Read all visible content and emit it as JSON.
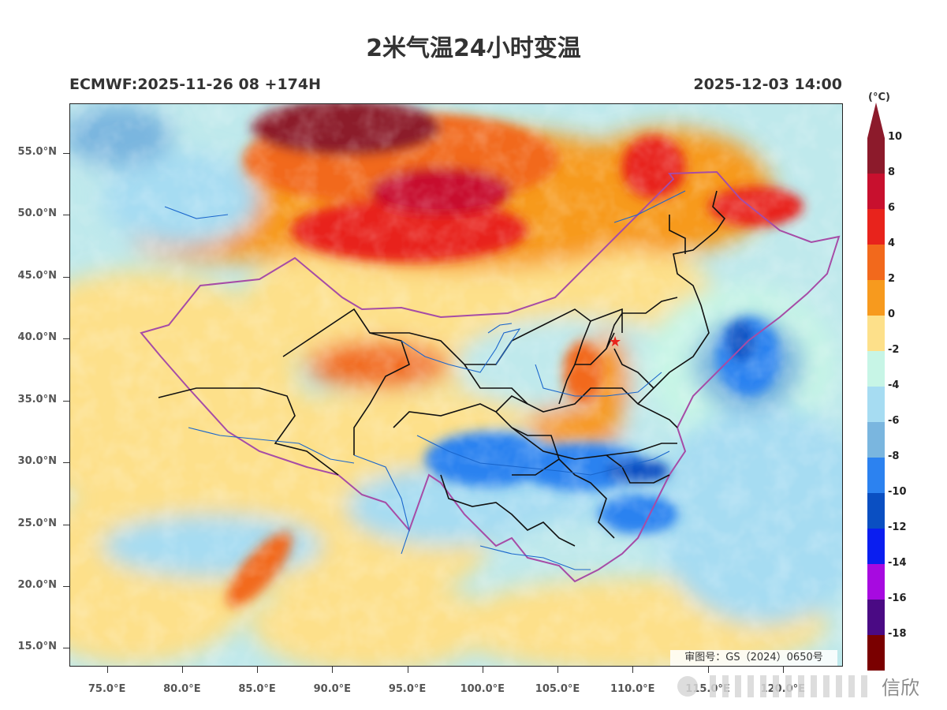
{
  "header": {
    "title": "2米气温24小时变温",
    "run_info": "ECMWF:2025-11-26 08 +174H",
    "valid_time": "2025-12-03 14:00"
  },
  "map": {
    "lat_range": [
      13.5,
      59
    ],
    "lon_range": [
      72.5,
      124
    ],
    "lat_ticks": [
      "55.0°N",
      "50.0°N",
      "45.0°N",
      "40.0°N",
      "35.0°N",
      "30.0°N",
      "25.0°N",
      "20.0°N",
      "15.0°N"
    ],
    "lon_ticks": [
      "75.0°E",
      "80.0°E",
      "85.0°E",
      "90.0°E",
      "95.0°E",
      "100.0°E",
      "105.0°E",
      "110.0°E",
      "115.0°E",
      "120.0°E"
    ],
    "review_number": "审图号：GS（2024）0650号"
  },
  "colorbar": {
    "unit": "(°C)",
    "labels": [
      "10",
      "8",
      "6",
      "4",
      "2",
      "0",
      "-2",
      "-4",
      "-6",
      "-8",
      "-10",
      "-12",
      "-14",
      "-16",
      "-18"
    ],
    "colors": [
      "#8c1a2b",
      "#c8102e",
      "#e8231c",
      "#f2691c",
      "#f79a1e",
      "#fde08a",
      "#c7f5e6",
      "#a6dcf2",
      "#7ab6df",
      "#2c82f0",
      "#0a4fc2",
      "#0a1ef0",
      "#a70ae0",
      "#4a0a84",
      "#7a0000"
    ],
    "top_color": "#8c1a2b",
    "bottom_color": "#4a0000"
  },
  "watermark": {
    "text": "信欣"
  }
}
